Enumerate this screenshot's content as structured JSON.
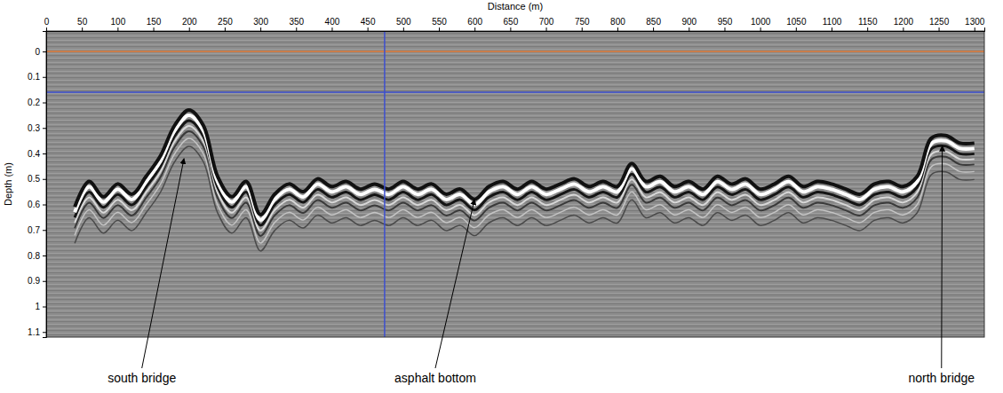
{
  "chart_data": {
    "type": "line",
    "x_label": "Distance (m)",
    "y_label": "Depth (m)",
    "xlim": [
      0,
      1314
    ],
    "ylim": [
      -0.08,
      1.12
    ],
    "xticks": [
      0,
      50,
      100,
      150,
      200,
      250,
      300,
      350,
      400,
      450,
      500,
      550,
      600,
      650,
      700,
      750,
      800,
      850,
      900,
      950,
      1000,
      1050,
      1100,
      1150,
      1200,
      1250,
      1300
    ],
    "yticks": [
      0,
      0.1,
      0.2,
      0.3,
      0.4,
      0.5,
      0.6,
      0.7,
      0.8,
      0.9,
      1,
      1.1
    ],
    "x": [
      40,
      60,
      80,
      100,
      120,
      140,
      160,
      180,
      200,
      220,
      240,
      260,
      280,
      300,
      320,
      340,
      360,
      380,
      400,
      420,
      440,
      460,
      480,
      500,
      520,
      540,
      560,
      580,
      600,
      620,
      640,
      660,
      680,
      700,
      720,
      740,
      760,
      780,
      800,
      820,
      840,
      860,
      880,
      900,
      920,
      940,
      960,
      980,
      1000,
      1020,
      1040,
      1060,
      1080,
      1100,
      1120,
      1140,
      1160,
      1180,
      1200,
      1220,
      1240,
      1260,
      1280,
      1300
    ],
    "series": [
      {
        "color": "#111111",
        "values": [
          0.62,
          0.52,
          0.58,
          0.53,
          0.57,
          0.5,
          0.42,
          0.3,
          0.24,
          0.3,
          0.5,
          0.58,
          0.52,
          0.65,
          0.57,
          0.53,
          0.56,
          0.51,
          0.54,
          0.52,
          0.55,
          0.53,
          0.55,
          0.52,
          0.55,
          0.53,
          0.57,
          0.55,
          0.59,
          0.54,
          0.52,
          0.55,
          0.52,
          0.55,
          0.53,
          0.51,
          0.54,
          0.52,
          0.54,
          0.45,
          0.52,
          0.5,
          0.54,
          0.52,
          0.55,
          0.5,
          0.53,
          0.51,
          0.55,
          0.53,
          0.5,
          0.54,
          0.52,
          0.53,
          0.55,
          0.57,
          0.53,
          0.52,
          0.54,
          0.5,
          0.35,
          0.34,
          0.37,
          0.37
        ]
      }
    ],
    "reference_lines": [
      {
        "axis": "y",
        "value": 0,
        "color": "#e07b39"
      },
      {
        "axis": "y",
        "value": 0.16,
        "color": "#3c4fd0"
      },
      {
        "axis": "x",
        "value": 474,
        "color": "#3c4fd0"
      }
    ],
    "annotations": [
      {
        "text": "south bridge",
        "x": 193,
        "y": 0.42,
        "label_x": 134
      },
      {
        "text": "asphalt bottom",
        "x": 600,
        "y": 0.58,
        "label_x": 545
      },
      {
        "text": "north bridge",
        "x": 1255,
        "y": 0.37,
        "label_x": 1254
      }
    ],
    "grid": false
  }
}
